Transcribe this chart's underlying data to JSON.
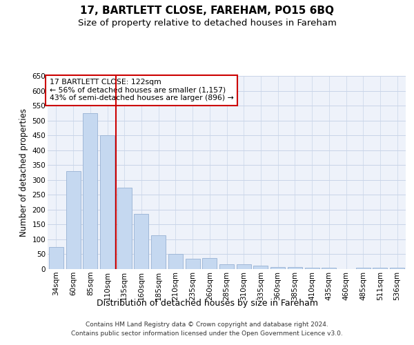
{
  "title": "17, BARTLETT CLOSE, FAREHAM, PO15 6BQ",
  "subtitle": "Size of property relative to detached houses in Fareham",
  "xlabel": "Distribution of detached houses by size in Fareham",
  "ylabel": "Number of detached properties",
  "categories": [
    "34sqm",
    "60sqm",
    "85sqm",
    "110sqm",
    "135sqm",
    "160sqm",
    "185sqm",
    "210sqm",
    "235sqm",
    "260sqm",
    "285sqm",
    "310sqm",
    "335sqm",
    "360sqm",
    "385sqm",
    "410sqm",
    "435sqm",
    "460sqm",
    "485sqm",
    "511sqm",
    "536sqm"
  ],
  "values": [
    75,
    330,
    525,
    450,
    275,
    185,
    113,
    52,
    35,
    37,
    17,
    17,
    12,
    8,
    8,
    5,
    5,
    0,
    5,
    5,
    5
  ],
  "bar_color": "#c5d8f0",
  "bar_edge_color": "#a0b8d8",
  "vline_x": 3.5,
  "vline_color": "#cc0000",
  "annotation_text": "17 BARTLETT CLOSE: 122sqm\n← 56% of detached houses are smaller (1,157)\n43% of semi-detached houses are larger (896) →",
  "annotation_box_color": "#ffffff",
  "annotation_box_edge_color": "#cc0000",
  "ylim": [
    0,
    650
  ],
  "yticks": [
    0,
    50,
    100,
    150,
    200,
    250,
    300,
    350,
    400,
    450,
    500,
    550,
    600,
    650
  ],
  "grid_color": "#c8d4e8",
  "bg_color": "#eef2fa",
  "footer_text": "Contains HM Land Registry data © Crown copyright and database right 2024.\nContains public sector information licensed under the Open Government Licence v3.0.",
  "title_fontsize": 11,
  "subtitle_fontsize": 9.5,
  "xlabel_fontsize": 9,
  "ylabel_fontsize": 8.5,
  "tick_fontsize": 7.5,
  "annotation_fontsize": 7.8,
  "footer_fontsize": 6.5
}
